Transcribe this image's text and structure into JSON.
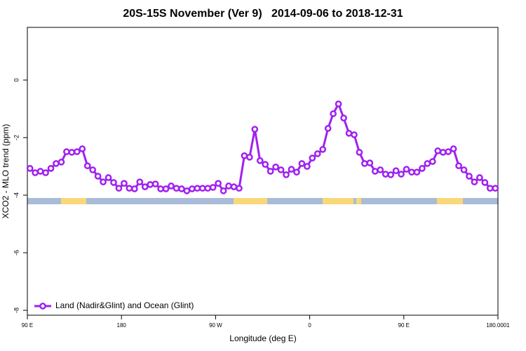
{
  "chart_data": {
    "type": "line",
    "title": "20S-15S November (Ver 9)   2014-09-06 to 2018-12-31",
    "xlabel": "Longitude (deg E)",
    "ylabel": "XCO2 - MLO trend (ppm)",
    "x": [
      92.5,
      97.5,
      102.5,
      107.5,
      112.5,
      117.5,
      122.5,
      127.5,
      132.5,
      137.5,
      142.5,
      147.5,
      152.5,
      157.5,
      162.5,
      167.5,
      172.5,
      177.5,
      182.5,
      187.5,
      192.5,
      197.5,
      202.5,
      207.5,
      212.5,
      217.5,
      222.5,
      227.5,
      232.5,
      237.5,
      242.5,
      247.5,
      252.5,
      257.5,
      262.5,
      267.5,
      272.5,
      277.5,
      282.5,
      287.5,
      292.5,
      297.5,
      302.5,
      307.5,
      312.5,
      317.5,
      322.5,
      327.5,
      332.5,
      337.5,
      342.5,
      347.5,
      352.5,
      357.5,
      362.5,
      367.5,
      372.5,
      377.5,
      382.5,
      387.5,
      392.5,
      397.5,
      402.5,
      407.5,
      412.5,
      417.5,
      422.5,
      427.5,
      432.5,
      437.5,
      442.5,
      447.5,
      452.5,
      457.5,
      462.5,
      467.5,
      472.5,
      477.5,
      482.5,
      487.5,
      492.5,
      497.5,
      502.5,
      507.5,
      512.5,
      517.5,
      522.5,
      527.5,
      532.5,
      537.5
    ],
    "series": [
      {
        "name": "Land (Nadir&Glint) and Ocean (Glint)",
        "color": "#a020f0",
        "values": [
          -3.07,
          -3.22,
          -3.17,
          -3.22,
          -3.07,
          -2.9,
          -2.85,
          -2.49,
          -2.51,
          -2.49,
          -2.39,
          -2.98,
          -3.12,
          -3.34,
          -3.54,
          -3.39,
          -3.56,
          -3.76,
          -3.59,
          -3.76,
          -3.78,
          -3.54,
          -3.71,
          -3.63,
          -3.61,
          -3.78,
          -3.78,
          -3.68,
          -3.76,
          -3.78,
          -3.85,
          -3.78,
          -3.76,
          -3.76,
          -3.76,
          -3.73,
          -3.59,
          -3.85,
          -3.68,
          -3.71,
          -3.76,
          -2.63,
          -2.68,
          -1.71,
          -2.8,
          -2.93,
          -3.17,
          -3.02,
          -3.12,
          -3.29,
          -3.1,
          -3.2,
          -2.9,
          -3.0,
          -2.71,
          -2.56,
          -2.41,
          -1.68,
          -1.17,
          -0.83,
          -1.32,
          -1.85,
          -1.9,
          -2.51,
          -2.9,
          -2.88,
          -3.17,
          -3.12,
          -3.27,
          -3.29,
          -3.15,
          -3.27,
          -3.1,
          -3.2,
          -3.2,
          -3.07,
          -2.9,
          -2.83,
          -2.46,
          -2.51,
          -2.49,
          -2.39,
          -2.98,
          -3.12,
          -3.34,
          -3.54,
          -3.39,
          -3.56,
          -3.76,
          -3.76
        ]
      }
    ],
    "xlim": [
      90,
      540
    ],
    "xticks": [
      {
        "value": 90,
        "label": "90 E"
      },
      180,
      {
        "value": 270,
        "label": "90 W"
      },
      {
        "value": 360,
        "label": "0"
      },
      {
        "value": 450,
        "label": "90 E"
      },
      180.0001
    ],
    "ylim": [
      -8.17,
      1.83
    ],
    "yticks": [
      0,
      -2,
      -4,
      -6,
      -8
    ],
    "legend": "bottom-left"
  }
}
